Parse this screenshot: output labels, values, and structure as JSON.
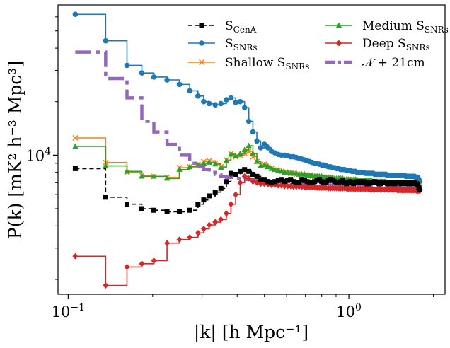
{
  "chart_data": {
    "type": "line",
    "drawstyle": "steps",
    "xscale": "log",
    "yscale": "log",
    "xlim": [
      0.092,
      2.2
    ],
    "ylim": [
      1650,
      70000
    ],
    "xlabel": "|k| [h Mpc⁻¹]",
    "ylabel": "P(k) [mK² h⁻³ Mpc³]",
    "x_ticks": [
      {
        "value": 0.1,
        "base": "10",
        "exp": "−1"
      },
      {
        "value": 1.0,
        "base": "10",
        "exp": "0"
      }
    ],
    "y_ticks": [
      {
        "value": 10000,
        "base": "10",
        "exp": "4"
      }
    ],
    "legend_position": "upper-right",
    "x": [
      0.106,
      0.136,
      0.162,
      0.183,
      0.202,
      0.225,
      0.249,
      0.271,
      0.29,
      0.304,
      0.318,
      0.334,
      0.35,
      0.366,
      0.38,
      0.395,
      0.41,
      0.425,
      0.44,
      0.455,
      0.47,
      0.485,
      0.5,
      0.515,
      0.53,
      0.545,
      0.56,
      0.575,
      0.59,
      0.605,
      0.62,
      0.635,
      0.65,
      0.665,
      0.68,
      0.695,
      0.71,
      0.725,
      0.74,
      0.755,
      0.77,
      0.785,
      0.8,
      0.815,
      0.83,
      0.845,
      0.86,
      0.875,
      0.89,
      0.905,
      0.92,
      0.935,
      0.95,
      0.965,
      0.98,
      0.995,
      1.01,
      1.025,
      1.04,
      1.055,
      1.07,
      1.085,
      1.1,
      1.115,
      1.13,
      1.145,
      1.16,
      1.175,
      1.19,
      1.205,
      1.22,
      1.235,
      1.25,
      1.265,
      1.28,
      1.295,
      1.31,
      1.325,
      1.34,
      1.355,
      1.37,
      1.385,
      1.4,
      1.415,
      1.43,
      1.445,
      1.46,
      1.475,
      1.49,
      1.505,
      1.52,
      1.535,
      1.55,
      1.565,
      1.58,
      1.595,
      1.61,
      1.625,
      1.64,
      1.655,
      1.67,
      1.685,
      1.7,
      1.715,
      1.73,
      1.745,
      1.76,
      1.775,
      1.79
    ],
    "series": [
      {
        "name": "S_CenA",
        "label_base": "S",
        "label_sub": "CenA",
        "color": "#000000",
        "linestyle": "dashed",
        "marker": "square",
        "linewidth": 1.6,
        "values": [
          8400,
          5800,
          5300,
          5000,
          4900,
          4800,
          4800,
          4900,
          5300,
          5600,
          5900,
          6200,
          6500,
          7100,
          7900,
          7800,
          8100,
          8300,
          8100,
          7800,
          7600,
          7300,
          7300,
          7100,
          7000,
          7100,
          7200,
          7300,
          7100,
          7200,
          7300,
          7100,
          7000,
          7000,
          7300,
          7200,
          7100,
          7000,
          7000,
          7100,
          7200,
          7300,
          7100,
          7000,
          7000,
          7200,
          7300,
          7200,
          7100,
          7000,
          7000,
          7100,
          7200,
          7000,
          6900,
          7000,
          7100,
          7000,
          6900,
          7000,
          7100,
          7100,
          7000,
          7000,
          7100,
          7000,
          6900,
          6900,
          7000,
          7000,
          7000,
          7100,
          7000,
          7000,
          6900,
          6900,
          7000,
          7000,
          7000,
          7000,
          6900,
          6900,
          7000,
          7000,
          7000,
          6900,
          6900,
          7000,
          7000,
          7000,
          7000,
          6900,
          6900,
          7000,
          7000,
          7000,
          6900,
          6900,
          7000,
          7000,
          7000,
          6900,
          6900,
          7000,
          6900,
          6900,
          6800,
          6600,
          6400
        ]
      },
      {
        "name": "S_SNRs",
        "label_base": "S",
        "label_sub": "SNRs",
        "color": "#1f77b4",
        "linestyle": "solid",
        "marker": "circle",
        "linewidth": 1.6,
        "values": [
          62000,
          44000,
          32000,
          29000,
          27500,
          26500,
          25000,
          23000,
          21500,
          20000,
          19500,
          19200,
          19500,
          20500,
          21000,
          19800,
          20000,
          18500,
          15500,
          13500,
          12000,
          11000,
          11500,
          11000,
          10500,
          10300,
          10100,
          10000,
          10000,
          9900,
          9800,
          9800,
          9700,
          9600,
          9500,
          9400,
          9300,
          9200,
          9100,
          9000,
          9000,
          8900,
          8800,
          8800,
          8700,
          8600,
          8600,
          8500,
          8500,
          8400,
          8400,
          8300,
          8300,
          8300,
          8200,
          8200,
          8200,
          8100,
          8100,
          8100,
          8000,
          8000,
          8000,
          8000,
          8000,
          7900,
          7900,
          7900,
          7900,
          7900,
          7900,
          7800,
          7800,
          7800,
          7800,
          7800,
          7800,
          7800,
          7800,
          7800,
          7700,
          7700,
          7700,
          7700,
          7700,
          7700,
          7700,
          7700,
          7700,
          7700,
          7700,
          7700,
          7700,
          7700,
          7700,
          7600,
          7600,
          7600,
          7600,
          7600,
          7600,
          7600,
          7600,
          7600,
          7500,
          7500,
          7500,
          7300,
          7100
        ]
      },
      {
        "name": "Shallow S_SNRs",
        "label_base": "Shallow S",
        "label_sub": "SNRs",
        "color": "#ff7f0e",
        "linestyle": "solid",
        "marker": "x",
        "linewidth": 1.6,
        "values": [
          12500,
          9100,
          8000,
          7700,
          7600,
          7500,
          8500,
          8600,
          8900,
          9200,
          9300,
          9000,
          8600,
          9400,
          10200,
          9800,
          10000,
          10300,
          10500,
          9800,
          9200,
          8800,
          8900,
          8600,
          8400,
          8300,
          8200,
          8100,
          8000,
          8000,
          7900,
          7900,
          7800,
          7800,
          7800,
          7700,
          7700,
          7700,
          7600,
          7600,
          7600,
          7600,
          7500,
          7500,
          7500,
          7500,
          7500,
          7400,
          7400,
          7400,
          7400,
          7400,
          7300,
          7300,
          7300,
          7300,
          7300,
          7300,
          7300,
          7200,
          7200,
          7200,
          7200,
          7200,
          7200,
          7200,
          7200,
          7100,
          7100,
          7100,
          7100,
          7100,
          7100,
          7100,
          7100,
          7100,
          7100,
          7100,
          7000,
          7000,
          7000,
          7000,
          7000,
          7000,
          7000,
          7000,
          7000,
          7000,
          7000,
          7000,
          7000,
          7000,
          7000,
          7000,
          6900,
          6900,
          6900,
          6900,
          6900,
          6900,
          6900,
          6900,
          6900,
          6900,
          6900,
          6900,
          6800,
          6700,
          6600
        ]
      },
      {
        "name": "Medium S_SNRs",
        "label_base": "Medium S",
        "label_sub": "SNRs",
        "color": "#2ca02c",
        "linestyle": "solid",
        "marker": "triangle",
        "linewidth": 1.6,
        "values": [
          11200,
          8700,
          8100,
          7600,
          7600,
          7400,
          8300,
          8600,
          8800,
          9000,
          9100,
          8900,
          8500,
          9300,
          10100,
          9900,
          10200,
          10700,
          11300,
          10200,
          9200,
          8700,
          8800,
          8600,
          8400,
          8300,
          8200,
          8100,
          8000,
          8000,
          7900,
          7900,
          7900,
          7800,
          7800,
          7800,
          7700,
          7700,
          7700,
          7600,
          7600,
          7600,
          7600,
          7500,
          7500,
          7500,
          7500,
          7500,
          7400,
          7400,
          7400,
          7400,
          7400,
          7300,
          7300,
          7300,
          7300,
          7300,
          7300,
          7300,
          7300,
          7200,
          7200,
          7200,
          7200,
          7200,
          7200,
          7200,
          7200,
          7200,
          7100,
          7100,
          7100,
          7100,
          7100,
          7100,
          7100,
          7100,
          7100,
          7100,
          7000,
          7000,
          7000,
          7000,
          7000,
          7000,
          7000,
          7000,
          7000,
          7000,
          7000,
          7000,
          7000,
          7000,
          7000,
          7000,
          7000,
          7000,
          7000,
          7000,
          6900,
          6900,
          6900,
          6900,
          6900,
          6900,
          6800,
          6700,
          6600
        ]
      },
      {
        "name": "Deep S_SNRs",
        "label_base": "Deep S",
        "label_sub": "SNRs",
        "color": "#d62728",
        "linestyle": "solid",
        "marker": "diamond",
        "linewidth": 1.6,
        "values": [
          2700,
          1850,
          2350,
          2450,
          2550,
          3200,
          3350,
          3450,
          3650,
          3850,
          4050,
          4200,
          4350,
          4700,
          5300,
          6000,
          7000,
          7600,
          7400,
          7100,
          7000,
          6900,
          6900,
          6850,
          6800,
          6800,
          6750,
          6750,
          6700,
          6700,
          6700,
          6650,
          6650,
          6650,
          6650,
          6600,
          6600,
          6600,
          6600,
          6600,
          6550,
          6550,
          6550,
          6550,
          6550,
          6500,
          6500,
          6500,
          6500,
          6500,
          6500,
          6500,
          6500,
          6500,
          6500,
          6450,
          6450,
          6450,
          6450,
          6450,
          6450,
          6450,
          6450,
          6450,
          6450,
          6450,
          6450,
          6450,
          6400,
          6400,
          6400,
          6400,
          6400,
          6400,
          6400,
          6400,
          6400,
          6400,
          6400,
          6400,
          6400,
          6400,
          6400,
          6400,
          6400,
          6400,
          6400,
          6400,
          6350,
          6350,
          6350,
          6350,
          6350,
          6350,
          6350,
          6350,
          6350,
          6350,
          6350,
          6350,
          6350,
          6350,
          6350,
          6350,
          6350,
          6300,
          6300,
          6300,
          6300
        ]
      },
      {
        "name": "N + 21cm",
        "label_base": "𝒩 + 21cm",
        "label_sub": "",
        "color": "#9467bd",
        "linestyle": "dashdot",
        "marker": "none",
        "linewidth": 4.5,
        "values": [
          38000,
          27000,
          21000,
          15500,
          13500,
          11500,
          10000,
          9000,
          8600,
          8300,
          8000,
          7800,
          7600,
          7500,
          7500,
          7400,
          7400,
          7300,
          7300,
          7300,
          7200,
          7200,
          7200,
          7100,
          7100,
          7100,
          7100,
          7000,
          7000,
          7000,
          7000,
          7000,
          6950,
          6950,
          6950,
          6900,
          6900,
          6900,
          6900,
          6900,
          6850,
          6850,
          6850,
          6850,
          6850,
          6800,
          6800,
          6800,
          6800,
          6800,
          6800,
          6800,
          6750,
          6750,
          6750,
          6750,
          6750,
          6750,
          6750,
          6750,
          6700,
          6700,
          6700,
          6700,
          6700,
          6700,
          6700,
          6700,
          6700,
          6700,
          6650,
          6650,
          6650,
          6650,
          6650,
          6650,
          6650,
          6650,
          6650,
          6650,
          6650,
          6650,
          6600,
          6600,
          6600,
          6600,
          6600,
          6600,
          6600,
          6600,
          6600,
          6600,
          6600,
          6600,
          6600,
          6600,
          6600,
          6600,
          6600,
          6550,
          6550,
          6550,
          6550,
          6550,
          6550,
          6550,
          6500,
          6500,
          6500
        ]
      }
    ]
  }
}
